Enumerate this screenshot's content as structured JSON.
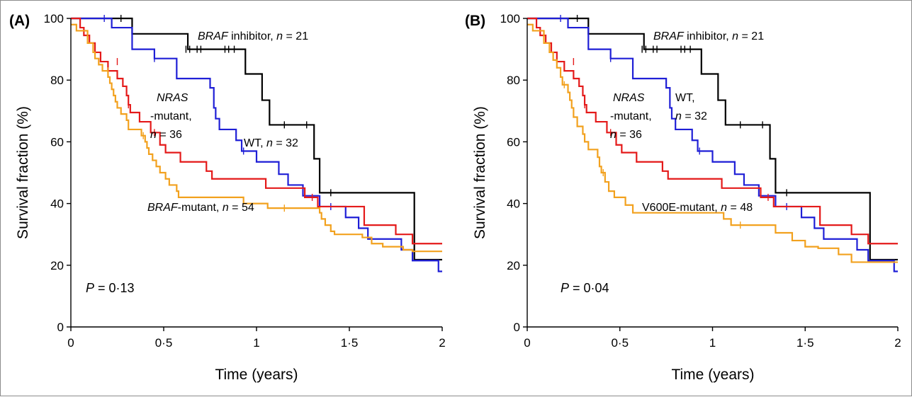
{
  "colors": {
    "braf_inhibitor": "#000000",
    "wt": "#1f1fd6",
    "nras": "#e41a1a",
    "braf_mutant": "#f2a11e",
    "axis": "#000000"
  },
  "chart_data": [
    {
      "type": "line",
      "subtype": "kaplan-meier step",
      "panel_label": "(A)",
      "xlabel": "Time (years)",
      "ylabel": "Survival fraction (%)",
      "xlim": [
        0,
        2
      ],
      "ylim": [
        0,
        100
      ],
      "xticks": [
        0,
        0.5,
        1,
        1.5,
        2
      ],
      "xtick_labels": [
        "0",
        "0·5",
        "1",
        "1·5",
        "2"
      ],
      "yticks": [
        0,
        20,
        40,
        60,
        80,
        100
      ],
      "ytick_labels": [
        "0",
        "20",
        "40",
        "60",
        "80",
        "100"
      ],
      "grid": false,
      "pvalue_prefix": "P",
      "pvalue_suffix": " = 0·13",
      "series": [
        {
          "key": "braf_inhibitor",
          "name_italic": "BRAF",
          "name_rest": " inhibitor, ",
          "n_italic": "n",
          "n_rest": " = 21",
          "steps": [
            [
              0,
              100
            ],
            [
              0.33,
              95
            ],
            [
              0.63,
              90
            ],
            [
              0.94,
              82
            ],
            [
              1.03,
              73.5
            ],
            [
              1.07,
              65.5
            ],
            [
              1.31,
              54.5
            ],
            [
              1.34,
              43.5
            ],
            [
              1.85,
              21.8
            ],
            [
              2,
              21.8
            ]
          ],
          "censors": [
            [
              0.27,
              100
            ],
            [
              0.62,
              90
            ],
            [
              0.64,
              90
            ],
            [
              0.68,
              90
            ],
            [
              0.7,
              90
            ],
            [
              0.83,
              90
            ],
            [
              0.85,
              90
            ],
            [
              0.88,
              90
            ],
            [
              1.15,
              65.5
            ],
            [
              1.27,
              65.5
            ],
            [
              1.4,
              43.5
            ]
          ]
        },
        {
          "key": "wt",
          "name": "WT, ",
          "n_italic": "n",
          "n_rest": " = 32",
          "steps": [
            [
              0,
              100
            ],
            [
              0.22,
              97
            ],
            [
              0.33,
              90
            ],
            [
              0.45,
              87
            ],
            [
              0.57,
              80.5
            ],
            [
              0.75,
              77.5
            ],
            [
              0.77,
              71
            ],
            [
              0.78,
              67.5
            ],
            [
              0.8,
              64
            ],
            [
              0.89,
              60.5
            ],
            [
              0.92,
              57
            ],
            [
              1.0,
              53.5
            ],
            [
              1.12,
              49.5
            ],
            [
              1.17,
              46
            ],
            [
              1.25,
              42.5
            ],
            [
              1.34,
              39
            ],
            [
              1.48,
              35.5
            ],
            [
              1.55,
              32
            ],
            [
              1.6,
              28.5
            ],
            [
              1.78,
              25
            ],
            [
              1.84,
              21.5
            ],
            [
              1.98,
              18
            ],
            [
              2,
              18
            ]
          ],
          "censors": [
            [
              0.18,
              100
            ],
            [
              0.45,
              87
            ],
            [
              0.93,
              57
            ],
            [
              1.4,
              39
            ]
          ]
        },
        {
          "key": "nras",
          "name_italic": "NRAS",
          "name_rest": "-mutant,",
          "n_italic": "n",
          "n_rest": " = 36",
          "steps": [
            [
              0,
              100
            ],
            [
              0.05,
              97
            ],
            [
              0.07,
              94.5
            ],
            [
              0.1,
              92
            ],
            [
              0.13,
              89
            ],
            [
              0.16,
              86
            ],
            [
              0.2,
              83
            ],
            [
              0.25,
              80.5
            ],
            [
              0.28,
              78
            ],
            [
              0.3,
              75
            ],
            [
              0.31,
              72
            ],
            [
              0.32,
              69.5
            ],
            [
              0.37,
              66.5
            ],
            [
              0.43,
              63
            ],
            [
              0.48,
              59
            ],
            [
              0.51,
              56.5
            ],
            [
              0.59,
              53.5
            ],
            [
              0.73,
              50.5
            ],
            [
              0.76,
              48
            ],
            [
              1.05,
              45
            ],
            [
              1.26,
              42
            ],
            [
              1.33,
              39
            ],
            [
              1.58,
              33
            ],
            [
              1.75,
              30
            ],
            [
              1.84,
              27
            ],
            [
              2,
              27
            ]
          ],
          "censors": [
            [
              0.25,
              86
            ],
            [
              0.31,
              72
            ],
            [
              0.45,
              63
            ],
            [
              1.3,
              42
            ]
          ]
        },
        {
          "key": "braf_mutant",
          "name_italic": "BRAF",
          "name_rest": "-mutant, ",
          "n_italic": "n",
          "n_rest": " = 54",
          "steps": [
            [
              0,
              98
            ],
            [
              0.03,
              96
            ],
            [
              0.09,
              92
            ],
            [
              0.12,
              89
            ],
            [
              0.13,
              87
            ],
            [
              0.15,
              85
            ],
            [
              0.17,
              83
            ],
            [
              0.2,
              81
            ],
            [
              0.21,
              79
            ],
            [
              0.22,
              77
            ],
            [
              0.23,
              75
            ],
            [
              0.24,
              73
            ],
            [
              0.25,
              71
            ],
            [
              0.27,
              69
            ],
            [
              0.3,
              67
            ],
            [
              0.31,
              64
            ],
            [
              0.38,
              62
            ],
            [
              0.4,
              60
            ],
            [
              0.41,
              58
            ],
            [
              0.42,
              56
            ],
            [
              0.44,
              54
            ],
            [
              0.46,
              52
            ],
            [
              0.48,
              50
            ],
            [
              0.51,
              48
            ],
            [
              0.53,
              46
            ],
            [
              0.57,
              44
            ],
            [
              0.58,
              42
            ],
            [
              0.93,
              40
            ],
            [
              1.06,
              38.5
            ],
            [
              1.34,
              37
            ],
            [
              1.35,
              35
            ],
            [
              1.37,
              33
            ],
            [
              1.4,
              31
            ],
            [
              1.42,
              30
            ],
            [
              1.57,
              29
            ],
            [
              1.62,
              27
            ],
            [
              1.68,
              26
            ],
            [
              1.79,
              25
            ],
            [
              1.84,
              24.5
            ],
            [
              2,
              24.5
            ]
          ],
          "censors": [
            [
              0.2,
              83
            ],
            [
              0.39,
              62
            ],
            [
              1.15,
              38.5
            ]
          ]
        }
      ]
    },
    {
      "type": "line",
      "subtype": "kaplan-meier step",
      "panel_label": "(B)",
      "xlabel": "Time (years)",
      "ylabel": "Survival fraction (%)",
      "xlim": [
        0,
        2
      ],
      "ylim": [
        0,
        100
      ],
      "xticks": [
        0,
        0.5,
        1,
        1.5,
        2
      ],
      "xtick_labels": [
        "0",
        "0·5",
        "1",
        "1·5",
        "2"
      ],
      "yticks": [
        0,
        20,
        40,
        60,
        80,
        100
      ],
      "ytick_labels": [
        "0",
        "20",
        "40",
        "60",
        "80",
        "100"
      ],
      "grid": false,
      "pvalue_prefix": "P",
      "pvalue_suffix": " = 0·04",
      "series": [
        {
          "key": "braf_inhibitor",
          "name_italic": "BRAF",
          "name_rest": " inhibitor, ",
          "n_italic": "n",
          "n_rest": " = 21",
          "steps": [
            [
              0,
              100
            ],
            [
              0.33,
              95
            ],
            [
              0.63,
              90
            ],
            [
              0.94,
              82
            ],
            [
              1.03,
              73.5
            ],
            [
              1.07,
              65.5
            ],
            [
              1.31,
              54.5
            ],
            [
              1.34,
              43.5
            ],
            [
              1.85,
              21.8
            ],
            [
              2,
              21.8
            ]
          ],
          "censors": [
            [
              0.27,
              100
            ],
            [
              0.62,
              90
            ],
            [
              0.64,
              90
            ],
            [
              0.68,
              90
            ],
            [
              0.7,
              90
            ],
            [
              0.83,
              90
            ],
            [
              0.85,
              90
            ],
            [
              0.88,
              90
            ],
            [
              1.15,
              65.5
            ],
            [
              1.27,
              65.5
            ],
            [
              1.4,
              43.5
            ]
          ]
        },
        {
          "key": "wt",
          "name": "WT,",
          "n_italic": "n",
          "n_rest": " = 32",
          "steps": [
            [
              0,
              100
            ],
            [
              0.22,
              97
            ],
            [
              0.33,
              90
            ],
            [
              0.45,
              87
            ],
            [
              0.57,
              80.5
            ],
            [
              0.75,
              77.5
            ],
            [
              0.77,
              71
            ],
            [
              0.78,
              67.5
            ],
            [
              0.8,
              64
            ],
            [
              0.89,
              60.5
            ],
            [
              0.92,
              57
            ],
            [
              1.0,
              53.5
            ],
            [
              1.12,
              49.5
            ],
            [
              1.17,
              46
            ],
            [
              1.25,
              42.5
            ],
            [
              1.34,
              39
            ],
            [
              1.48,
              35.5
            ],
            [
              1.55,
              32
            ],
            [
              1.6,
              28.5
            ],
            [
              1.78,
              25
            ],
            [
              1.84,
              21.5
            ],
            [
              1.98,
              18
            ],
            [
              2,
              18
            ]
          ],
          "censors": [
            [
              0.18,
              100
            ],
            [
              0.45,
              87
            ],
            [
              0.93,
              57
            ],
            [
              1.4,
              39
            ]
          ]
        },
        {
          "key": "nras",
          "name_italic": "NRAS",
          "name_rest": "-mutant,",
          "n_italic": "n",
          "n_rest": " = 36",
          "steps": [
            [
              0,
              100
            ],
            [
              0.05,
              97
            ],
            [
              0.07,
              94.5
            ],
            [
              0.1,
              92
            ],
            [
              0.13,
              89
            ],
            [
              0.16,
              86
            ],
            [
              0.2,
              83
            ],
            [
              0.25,
              80.5
            ],
            [
              0.28,
              78
            ],
            [
              0.3,
              75
            ],
            [
              0.31,
              72
            ],
            [
              0.32,
              69.5
            ],
            [
              0.37,
              66.5
            ],
            [
              0.43,
              63
            ],
            [
              0.48,
              59
            ],
            [
              0.51,
              56.5
            ],
            [
              0.59,
              53.5
            ],
            [
              0.73,
              50.5
            ],
            [
              0.76,
              48
            ],
            [
              1.05,
              45
            ],
            [
              1.26,
              42
            ],
            [
              1.33,
              39
            ],
            [
              1.58,
              33
            ],
            [
              1.75,
              30
            ],
            [
              1.84,
              27
            ],
            [
              2,
              27
            ]
          ],
          "censors": [
            [
              0.25,
              86
            ],
            [
              0.31,
              72
            ],
            [
              0.45,
              63
            ],
            [
              1.3,
              42
            ]
          ]
        },
        {
          "key": "braf_mutant",
          "name": "V600E-mutant, ",
          "n_italic": "n",
          "n_rest": " = 48",
          "steps": [
            [
              0,
              98
            ],
            [
              0.03,
              96
            ],
            [
              0.09,
              92
            ],
            [
              0.12,
              89
            ],
            [
              0.14,
              86.5
            ],
            [
              0.16,
              84
            ],
            [
              0.18,
              81
            ],
            [
              0.19,
              78.5
            ],
            [
              0.22,
              76
            ],
            [
              0.23,
              73.5
            ],
            [
              0.24,
              71
            ],
            [
              0.25,
              68
            ],
            [
              0.27,
              65
            ],
            [
              0.3,
              62.5
            ],
            [
              0.31,
              60
            ],
            [
              0.33,
              57.5
            ],
            [
              0.38,
              55
            ],
            [
              0.39,
              52
            ],
            [
              0.4,
              50
            ],
            [
              0.42,
              47
            ],
            [
              0.44,
              44
            ],
            [
              0.47,
              42
            ],
            [
              0.53,
              39.5
            ],
            [
              0.57,
              37
            ],
            [
              1.06,
              35
            ],
            [
              1.1,
              33
            ],
            [
              1.34,
              30.5
            ],
            [
              1.43,
              28
            ],
            [
              1.5,
              26
            ],
            [
              1.57,
              25.5
            ],
            [
              1.68,
              23.5
            ],
            [
              1.75,
              21
            ],
            [
              2,
              21
            ]
          ],
          "censors": [
            [
              0.2,
              78.5
            ],
            [
              0.41,
              50
            ],
            [
              1.15,
              33
            ]
          ]
        }
      ]
    }
  ]
}
